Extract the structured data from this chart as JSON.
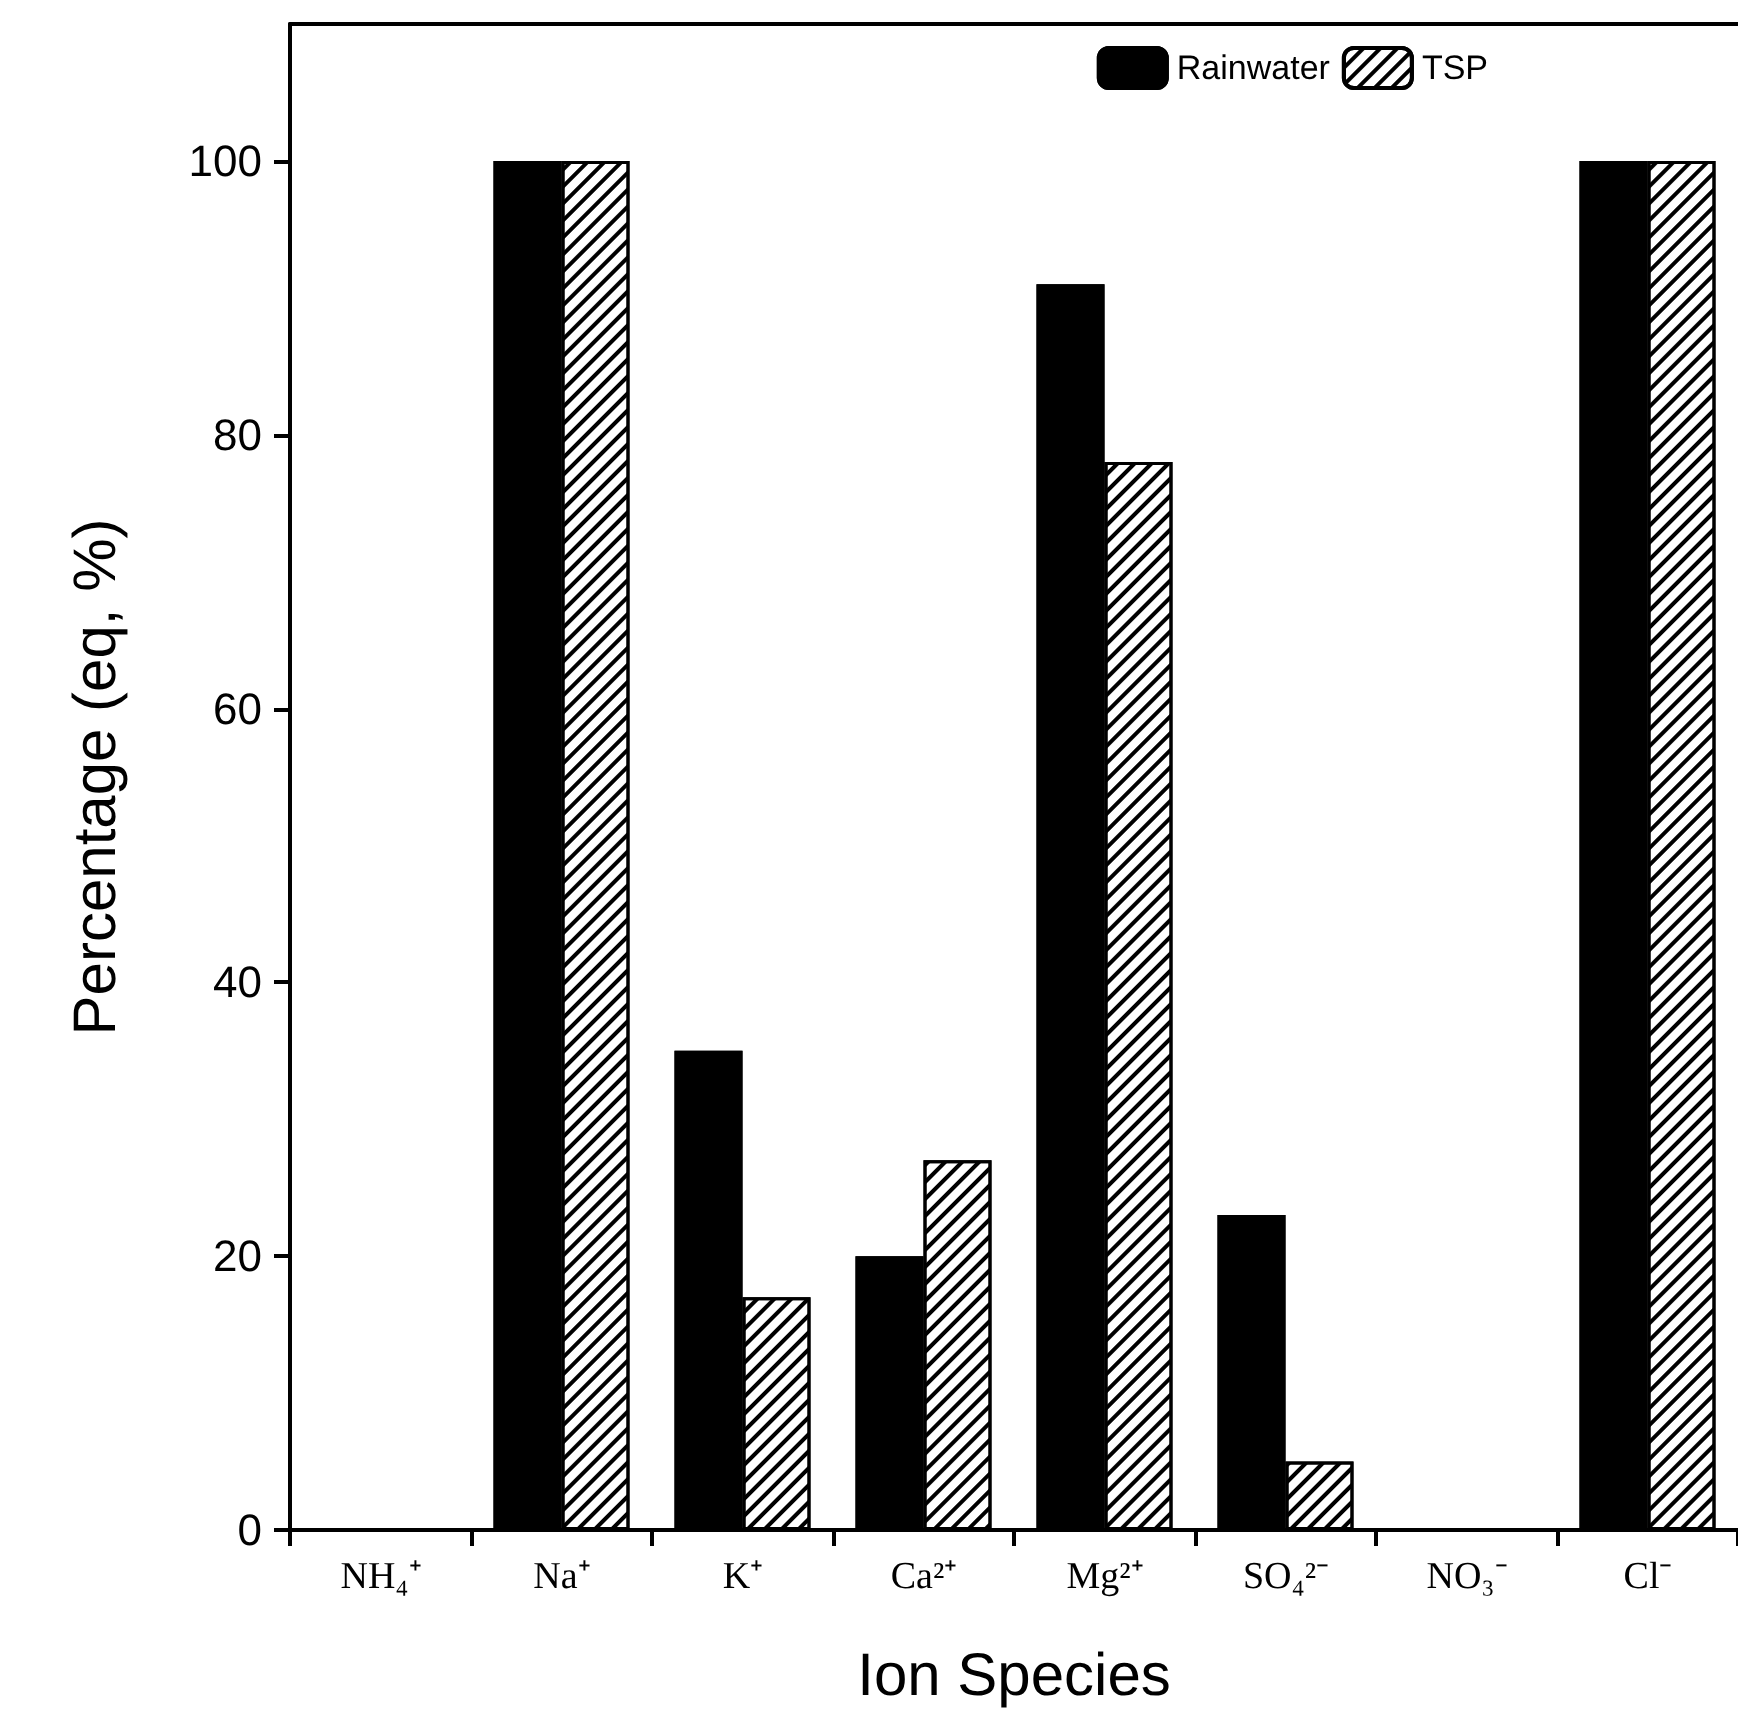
{
  "chart_data": {
    "type": "bar",
    "xlabel": "Ion Species",
    "ylabel": "Percentage (eq, %)",
    "categories": [
      "NH₄⁺",
      "Na⁺",
      "K⁺",
      "Ca²⁺",
      "Mg²⁺",
      "SO₄²⁻",
      "NO₃⁻",
      "Cl⁻"
    ],
    "series": [
      {
        "name": "Rainwater",
        "color": "#000000",
        "values": [
          null,
          100,
          35,
          20,
          91,
          23,
          null,
          100
        ]
      },
      {
        "name": "TSP",
        "color": "#ffffff",
        "values": [
          null,
          100,
          17,
          27,
          78,
          5,
          null,
          100
        ]
      }
    ],
    "ylim": [
      0,
      110
    ],
    "yticks": [
      0,
      20,
      40,
      60,
      80,
      100
    ],
    "grid": false,
    "legend": "top right"
  }
}
